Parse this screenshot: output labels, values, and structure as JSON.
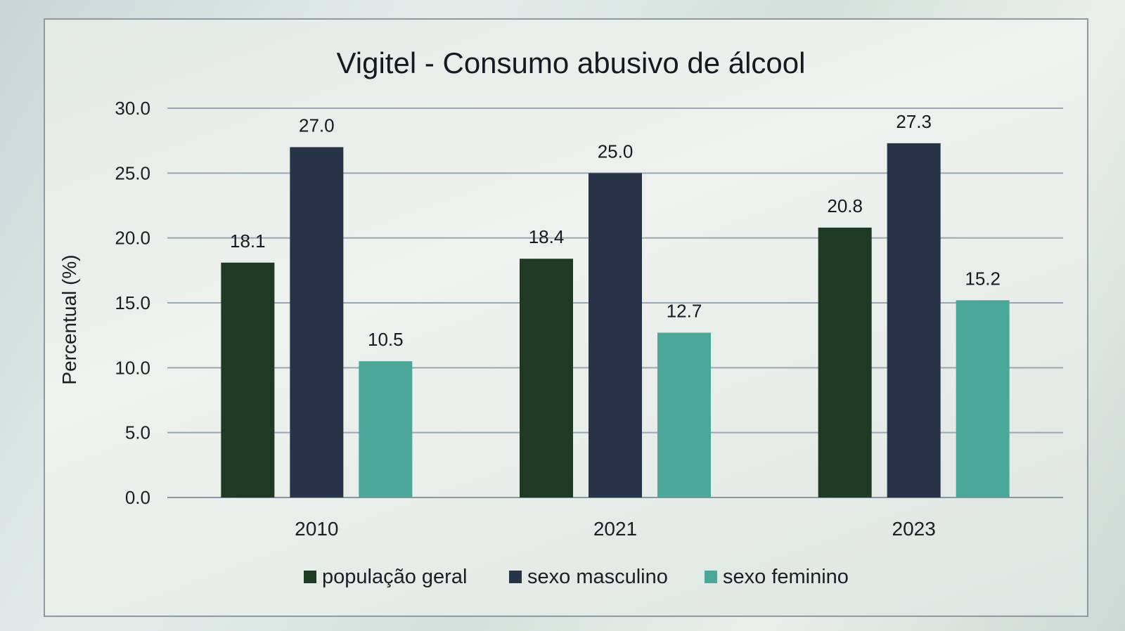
{
  "chart_data": {
    "type": "bar",
    "title": "Vigitel - Consumo abusivo de álcool",
    "xlabel": "",
    "ylabel": "Percentual (%)",
    "ylim": [
      0,
      30
    ],
    "yticks": [
      "0.0",
      "5.0",
      "10.0",
      "15.0",
      "20.0",
      "25.0",
      "30.0"
    ],
    "grid": true,
    "legend_position": "bottom",
    "categories": [
      "2010",
      "2021",
      "2023"
    ],
    "series": [
      {
        "name": "população geral",
        "values": [
          18.1,
          18.4,
          20.8
        ],
        "labels": [
          "18.1",
          "18.4",
          "20.8"
        ],
        "color": "#1e3a22"
      },
      {
        "name": "sexo masculino",
        "values": [
          27.0,
          25.0,
          27.3
        ],
        "labels": [
          "27.0",
          "25.0",
          "27.3"
        ],
        "color": "#273447"
      },
      {
        "name": "sexo feminino",
        "values": [
          10.5,
          12.7,
          15.2
        ],
        "labels": [
          "10.5",
          "12.7",
          "15.2"
        ],
        "color": "#4aa79a"
      }
    ]
  }
}
